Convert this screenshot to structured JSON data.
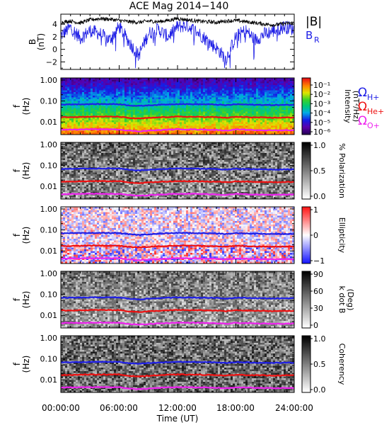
{
  "title": "ACE Mag 2014−140",
  "colors": {
    "magnitude": "#000000",
    "radial": "#1f1fe6",
    "proton_gyro": "#1f1fe6",
    "helium_gyro": "#ee1111",
    "oxygen_gyro": "#ee22ee"
  },
  "time_axis": {
    "label": "Time (UT)",
    "ticks": [
      "00:00:00",
      "06:00:00",
      "12:00:00",
      "18:00:00",
      "24:00:00"
    ]
  },
  "gyro_labels": [
    {
      "symbol": "Ω",
      "sub": "H+"
    },
    {
      "symbol": "Ω",
      "sub": "He+"
    },
    {
      "symbol": "Ω",
      "sub": "O+"
    }
  ],
  "chart_data": [
    {
      "type": "line",
      "panel": "field",
      "ylabel_main": "B",
      "ylabel_unit": "(nT)",
      "ylim": [
        -3.2,
        5.6
      ],
      "yticks": [
        "4",
        "2",
        "0",
        "−2"
      ],
      "ytick_values": [
        4,
        2,
        0,
        -2
      ],
      "x_hours": [
        0,
        1,
        2,
        3,
        4,
        5,
        6,
        7,
        8,
        9,
        10,
        11,
        12,
        13,
        14,
        15,
        16,
        17,
        18,
        19,
        20,
        21,
        22,
        23,
        24
      ],
      "legend": [
        {
          "label": "|B|",
          "color": "#000000"
        },
        {
          "label": "B",
          "sub": "R",
          "color": "#1f1fe6"
        }
      ],
      "series": [
        {
          "name": "|B|",
          "values": [
            4.3,
            4.5,
            4.2,
            4.7,
            4.9,
            4.8,
            4.6,
            4.4,
            4.3,
            4.5,
            4.4,
            4.6,
            4.9,
            4.7,
            4.5,
            4.4,
            4.3,
            4.5,
            4.6,
            4.4,
            4.2,
            4.0,
            3.9,
            4.1,
            4.2
          ]
        },
        {
          "name": "B_R",
          "values": [
            2.2,
            3.5,
            1.8,
            3.0,
            2.5,
            1.5,
            3.6,
            1.2,
            -1.0,
            2.5,
            3.2,
            2.0,
            3.6,
            3.8,
            2.8,
            1.5,
            0.2,
            -1.5,
            2.0,
            3.0,
            1.5,
            2.5,
            3.0,
            3.6,
            3.2
          ]
        }
      ]
    },
    {
      "type": "heatmap",
      "panel": "intensity",
      "ylabel_main": "f",
      "ylabel_unit": "(Hz)",
      "yticks": [
        "1.00",
        "0.10",
        "0.01"
      ],
      "ylim_log10": [
        -2.6,
        0.1
      ],
      "colorbar_label": [
        "Intensity",
        "(nT²/Hz)"
      ],
      "colorbar_ticks": [
        "10⁻¹",
        "10⁻²",
        "10⁻³",
        "10⁻⁴",
        "10⁻⁵",
        "10⁻⁶"
      ],
      "colormap": "rainbow"
    },
    {
      "type": "heatmap",
      "panel": "polarization",
      "ylabel_main": "f",
      "ylabel_unit": "(Hz)",
      "yticks": [
        "1.00",
        "0.10",
        "0.01"
      ],
      "colorbar_label": [
        "% Polarization"
      ],
      "colorbar_ticks": [
        "1.0",
        "0.5",
        "0.0"
      ],
      "colormap": "gray"
    },
    {
      "type": "heatmap",
      "panel": "ellipticity",
      "ylabel_main": "f",
      "ylabel_unit": "(Hz)",
      "yticks": [
        "1.00",
        "0.10",
        "0.01"
      ],
      "colorbar_label": [
        "Ellipticity"
      ],
      "colorbar_ticks": [
        "1",
        "0",
        "−1"
      ],
      "colormap": "bwr"
    },
    {
      "type": "heatmap",
      "panel": "kdotb",
      "ylabel_main": "f",
      "ylabel_unit": "(Hz)",
      "yticks": [
        "1.00",
        "0.10",
        "0.01"
      ],
      "colorbar_label": [
        "k dot B",
        "(Deg)"
      ],
      "colorbar_ticks": [
        "90",
        "60",
        "30",
        "0"
      ],
      "colormap": "gray"
    },
    {
      "type": "heatmap",
      "panel": "coherency",
      "ylabel_main": "f",
      "ylabel_unit": "(Hz)",
      "yticks": [
        "1.00",
        "0.10",
        "0.01"
      ],
      "colorbar_label": [
        "Coherency"
      ],
      "colorbar_ticks": [
        "1.0",
        "0.5",
        "0.0"
      ],
      "colormap": "gray"
    }
  ],
  "gyro_lines": {
    "x_hours": [
      0,
      2,
      4,
      6,
      7,
      8,
      10,
      12,
      14,
      16,
      17,
      18,
      20,
      22,
      24
    ],
    "H_plus_hz": [
      0.068,
      0.07,
      0.072,
      0.071,
      0.062,
      0.058,
      0.066,
      0.072,
      0.07,
      0.068,
      0.063,
      0.07,
      0.066,
      0.064,
      0.066
    ],
    "He_plus_hz": [
      0.017,
      0.0175,
      0.018,
      0.0178,
      0.0155,
      0.0145,
      0.0165,
      0.018,
      0.0175,
      0.017,
      0.0158,
      0.0175,
      0.0165,
      0.016,
      0.0165
    ],
    "O_plus_hz": [
      0.0043,
      0.0044,
      0.0045,
      0.0044,
      0.0039,
      0.0036,
      0.0041,
      0.0045,
      0.0044,
      0.0042,
      0.0039,
      0.0044,
      0.0041,
      0.004,
      0.0041
    ]
  }
}
